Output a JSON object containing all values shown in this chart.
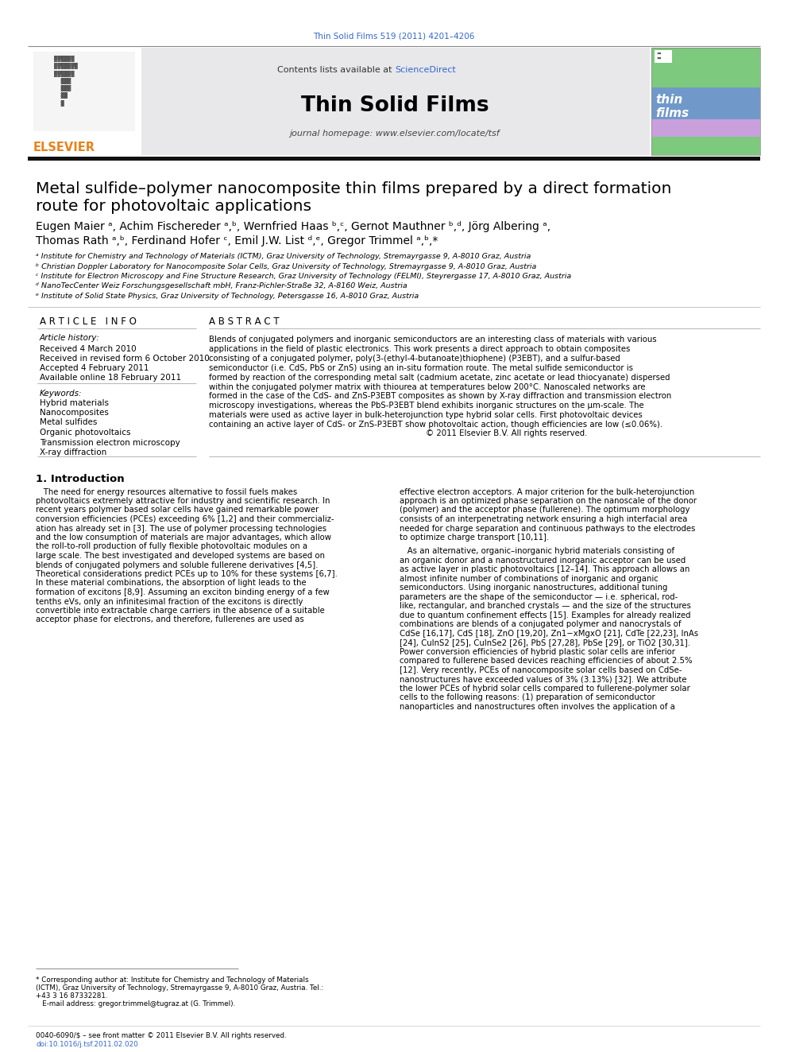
{
  "page_bg": "#ffffff",
  "journal_ref": "Thin Solid Films 519 (2011) 4201–4206",
  "journal_ref_color": "#3366cc",
  "journal_name": "Thin Solid Films",
  "header_bg": "#e8e8eb",
  "contents_text": "Contents lists available at ",
  "sciencedirect_text": "ScienceDirect",
  "sciencedirect_color": "#3366cc",
  "homepage_text": "journal homepage: www.elsevier.com/locate/tsf",
  "elsevier_color": "#e8821a",
  "title_line1": "Metal sulfide–polymer nanocomposite thin films prepared by a direct formation",
  "title_line2": "route for photovoltaic applications",
  "author_line1": "Eugen Maier ᵃ, Achim Fischereder ᵃ,ᵇ, Wernfried Haas ᵇ,ᶜ, Gernot Mauthner ᵇ,ᵈ, Jörg Albering ᵃ,",
  "author_line2": "Thomas Rath ᵃ,ᵇ, Ferdinand Hofer ᶜ, Emil J.W. List ᵈ,ᵉ, Gregor Trimmel ᵃ,ᵇ,*",
  "author_color": "#000000",
  "affil_a": "ᵃ Institute for Chemistry and Technology of Materials (ICTM), Graz University of Technology, Stremayrgasse 9, A-8010 Graz, Austria",
  "affil_b": "ᵇ Christian Doppler Laboratory for Nanocomposite Solar Cells, Graz University of Technology, Stremayrgasse 9, A-8010 Graz, Austria",
  "affil_c": "ᶜ Institute for Electron Microscopy and Fine Structure Research, Graz University of Technology (FELMI), Steyrergasse 17, A-8010 Graz, Austria",
  "affil_d": "ᵈ NanoTecCenter Weiz Forschungsgesellschaft mbH, Franz-Pichler-Straße 32, A-8160 Weiz, Austria",
  "affil_e": "ᵉ Institute of Solid State Physics, Graz University of Technology, Petersgasse 16, A-8010 Graz, Austria",
  "article_info_header": "A R T I C L E   I N F O",
  "abstract_header": "A B S T R A C T",
  "article_history_label": "Article history:",
  "received": "Received 4 March 2010",
  "revised": "Received in revised form 6 October 2010",
  "accepted": "Accepted 4 February 2011",
  "available": "Available online 18 February 2011",
  "keywords_label": "Keywords:",
  "keywords": [
    "Hybrid materials",
    "Nanocomposites",
    "Metal sulfides",
    "Organic photovoltaics",
    "Transmission electron microscopy",
    "X-ray diffraction"
  ],
  "abstract_lines": [
    "Blends of conjugated polymers and inorganic semiconductors are an interesting class of materials with various",
    "applications in the field of plastic electronics. This work presents a direct approach to obtain composites",
    "consisting of a conjugated polymer, poly(3-(ethyl-4-butanoate)thiophene) (P3EBT), and a sulfur-based",
    "semiconductor (i.e. CdS, PbS or ZnS) using an in-situ formation route. The metal sulfide semiconductor is",
    "formed by reaction of the corresponding metal salt (cadmium acetate, zinc acetate or lead thiocyanate) dispersed",
    "within the conjugated polymer matrix with thiourea at temperatures below 200°C. Nanoscaled networks are",
    "formed in the case of the CdS- and ZnS-P3EBT composites as shown by X-ray diffraction and transmission electron",
    "microscopy investigations, whereas the PbS-P3EBT blend exhibits inorganic structures on the μm-scale. The",
    "materials were used as active layer in bulk-heterojunction type hybrid solar cells. First photovoltaic devices",
    "containing an active layer of CdS- or ZnS-P3EBT show photovoltaic action, though efficiencies are low (≤0.06%).",
    "                                                                                    © 2011 Elsevier B.V. All rights reserved."
  ],
  "intro_header": "1. Introduction",
  "intro_left_lines": [
    "   The need for energy resources alternative to fossil fuels makes",
    "photovoltaics extremely attractive for industry and scientific research. In",
    "recent years polymer based solar cells have gained remarkable power",
    "conversion efficiencies (PCEs) exceeding 6% [1,2] and their commercializ-",
    "ation has already set in [3]. The use of polymer processing technologies",
    "and the low consumption of materials are major advantages, which allow",
    "the roll-to-roll production of fully flexible photovoltaic modules on a",
    "large scale. The best investigated and developed systems are based on",
    "blends of conjugated polymers and soluble fullerene derivatives [4,5].",
    "Theoretical considerations predict PCEs up to 10% for these systems [6,7].",
    "In these material combinations, the absorption of light leads to the",
    "formation of excitons [8,9]. Assuming an exciton binding energy of a few",
    "tenths eVs, only an infinitesimal fraction of the excitons is directly",
    "convertible into extractable charge carriers in the absence of a suitable",
    "acceptor phase for electrons, and therefore, fullerenes are used as"
  ],
  "intro_right_lines": [
    "effective electron acceptors. A major criterion for the bulk-heterojunction",
    "approach is an optimized phase separation on the nanoscale of the donor",
    "(polymer) and the acceptor phase (fullerene). The optimum morphology",
    "consists of an interpenetrating network ensuring a high interfacial area",
    "needed for charge separation and continuous pathways to the electrodes",
    "to optimize charge transport [10,11].",
    "   As an alternative, organic–inorganic hybrid materials consisting of",
    "an organic donor and a nanostructured inorganic acceptor can be used",
    "as active layer in plastic photovoltaics [12–14]. This approach allows an",
    "almost infinite number of combinations of inorganic and organic",
    "semiconductors. Using inorganic nanostructures, additional tuning",
    "parameters are the shape of the semiconductor — i.e. spherical, rod-",
    "like, rectangular, and branched crystals — and the size of the structures",
    "due to quantum confinement effects [15]. Examples for already realized",
    "combinations are blends of a conjugated polymer and nanocrystals of",
    "CdSe [16,17], CdS [18], ZnO [19,20], Zn1−xMgxO [21], CdTe [22,23], InAs",
    "[24], CuInS2 [25], CuInSe2 [26], PbS [27,28], PbSe [29], or TiO2 [30,31].",
    "Power conversion efficiencies of hybrid plastic solar cells are inferior",
    "compared to fullerene based devices reaching efficiencies of about 2.5%",
    "[12]. Very recently, PCEs of nanocomposite solar cells based on CdSe-",
    "nanostructures have exceeded values of 3% (3.13%) [32]. We attribute",
    "the lower PCEs of hybrid solar cells compared to fullerene-polymer solar",
    "cells to the following reasons: (1) preparation of semiconductor",
    "nanoparticles and nanostructures often involves the application of a"
  ],
  "footnote_lines": [
    "* Corresponding author at: Institute for Chemistry and Technology of Materials",
    "(ICTM), Graz University of Technology, Stremayrgasse 9, A-8010 Graz, Austria. Tel.:",
    "+43 3 16 87332281.",
    "   E-mail address: gregor.trimmel@tugraz.at (G. Trimmel)."
  ],
  "footer_line1": "0040-6090/$ – see front matter © 2011 Elsevier B.V. All rights reserved.",
  "footer_line2": "doi:10.1016/j.tsf.2011.02.020",
  "cover_green": "#7dc97d",
  "cover_blue": "#7099c9",
  "cover_purple": "#c9a0dc",
  "cover_text": "thin\nfilms",
  "line_color": "#999999",
  "thick_line_color": "#111111"
}
